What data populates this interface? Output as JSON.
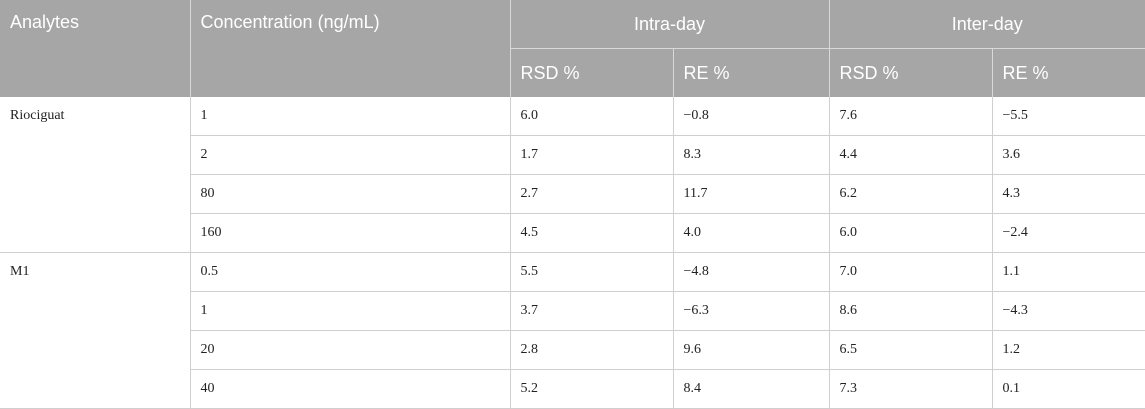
{
  "table": {
    "headers": {
      "analytes": "Analytes",
      "concentration": "Concentration (ng/mL)",
      "intra_day": "Intra-day",
      "inter_day": "Inter-day",
      "intra_rsd": "RSD %",
      "intra_re": "RE %",
      "inter_rsd": "RSD %",
      "inter_re": "RE %"
    },
    "groups": [
      {
        "analyte": "Riociguat",
        "rows": [
          {
            "conc": "1",
            "intra_rsd": "6.0",
            "intra_re": "−0.8",
            "inter_rsd": "7.6",
            "inter_re": "−5.5"
          },
          {
            "conc": "2",
            "intra_rsd": "1.7",
            "intra_re": "8.3",
            "inter_rsd": "4.4",
            "inter_re": "3.6"
          },
          {
            "conc": "80",
            "intra_rsd": "2.7",
            "intra_re": "11.7",
            "inter_rsd": "6.2",
            "inter_re": "4.3"
          },
          {
            "conc": "160",
            "intra_rsd": "4.5",
            "intra_re": "4.0",
            "inter_rsd": "6.0",
            "inter_re": "−2.4"
          }
        ]
      },
      {
        "analyte": "M1",
        "rows": [
          {
            "conc": "0.5",
            "intra_rsd": "5.5",
            "intra_re": "−4.8",
            "inter_rsd": "7.0",
            "inter_re": "1.1"
          },
          {
            "conc": "1",
            "intra_rsd": "3.7",
            "intra_re": "−6.3",
            "inter_rsd": "8.6",
            "inter_re": "−4.3"
          },
          {
            "conc": "20",
            "intra_rsd": "2.8",
            "intra_re": "9.6",
            "inter_rsd": "6.5",
            "inter_re": "1.2"
          },
          {
            "conc": "40",
            "intra_rsd": "5.2",
            "intra_re": "8.4",
            "inter_rsd": "7.3",
            "inter_re": "0.1"
          }
        ]
      }
    ]
  }
}
